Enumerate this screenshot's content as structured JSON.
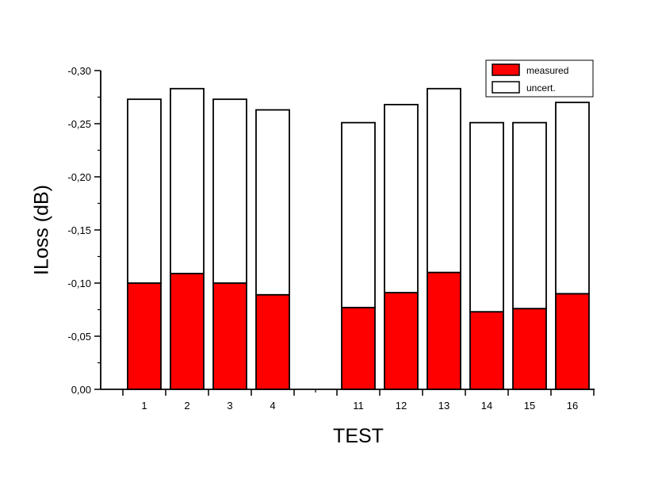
{
  "chart_data": {
    "type": "bar",
    "stacked": true,
    "xlabel": "TEST",
    "ylabel": "ILoss (dB)",
    "ylim": [
      0,
      -0.3
    ],
    "yticks": [
      "0,00",
      "-0,05",
      "-0,10",
      "-0,15",
      "-0,20",
      "-0,25",
      "-0,30"
    ],
    "categories": [
      "1",
      "2",
      "3",
      "4",
      "11",
      "12",
      "13",
      "14",
      "15",
      "16"
    ],
    "series": [
      {
        "name": "measured",
        "color": "#ff0000",
        "values": [
          -0.1,
          -0.109,
          -0.1,
          -0.089,
          -0.077,
          -0.091,
          -0.11,
          -0.073,
          -0.076,
          -0.09
        ]
      },
      {
        "name": "uncert.",
        "color": "#ffffff",
        "values": [
          -0.173,
          -0.174,
          -0.173,
          -0.174,
          -0.174,
          -0.177,
          -0.173,
          -0.178,
          -0.175,
          -0.18
        ]
      }
    ],
    "legend_position": "top-right",
    "grid": false
  }
}
